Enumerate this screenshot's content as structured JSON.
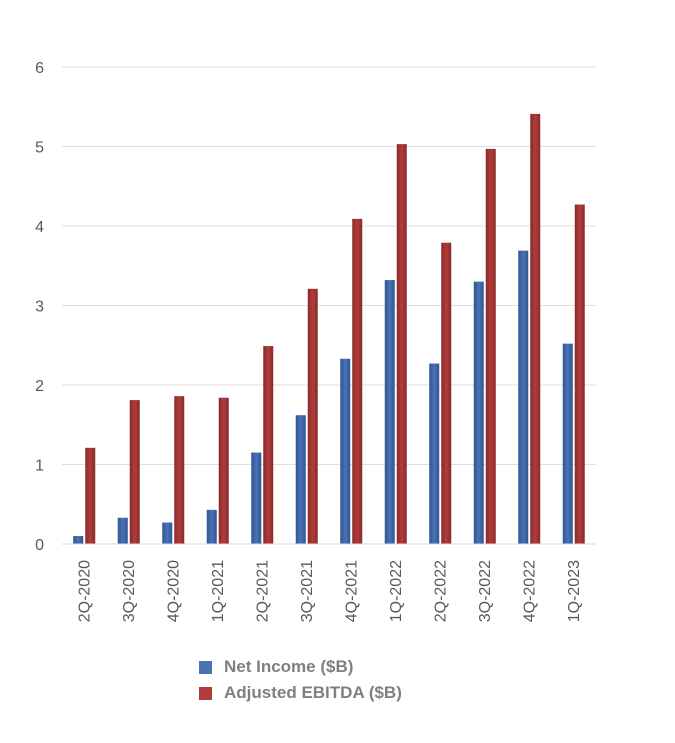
{
  "chart_data": {
    "type": "bar",
    "categories": [
      "2Q-2020",
      "3Q-2020",
      "4Q-2020",
      "1Q-2021",
      "2Q-2021",
      "3Q-2021",
      "4Q-2021",
      "1Q-2022",
      "2Q-2022",
      "3Q-2022",
      "4Q-2022",
      "1Q-2023"
    ],
    "series": [
      {
        "name": "Net Income ($B)",
        "color": "#4a73b2",
        "values": [
          0.1,
          0.33,
          0.27,
          0.43,
          1.15,
          1.62,
          2.33,
          3.32,
          2.27,
          3.3,
          3.69,
          2.52
        ]
      },
      {
        "name": "Adjusted EBITDA ($B)",
        "color": "#b03c3b",
        "values": [
          1.21,
          1.81,
          1.86,
          1.84,
          2.49,
          3.21,
          4.09,
          5.03,
          3.79,
          4.97,
          5.41,
          4.27
        ]
      }
    ],
    "yticks": [
      "0",
      "1",
      "2",
      "3",
      "4",
      "5",
      "6"
    ],
    "ylim": [
      0,
      6
    ],
    "grid": true,
    "legend_position": "bottom"
  }
}
